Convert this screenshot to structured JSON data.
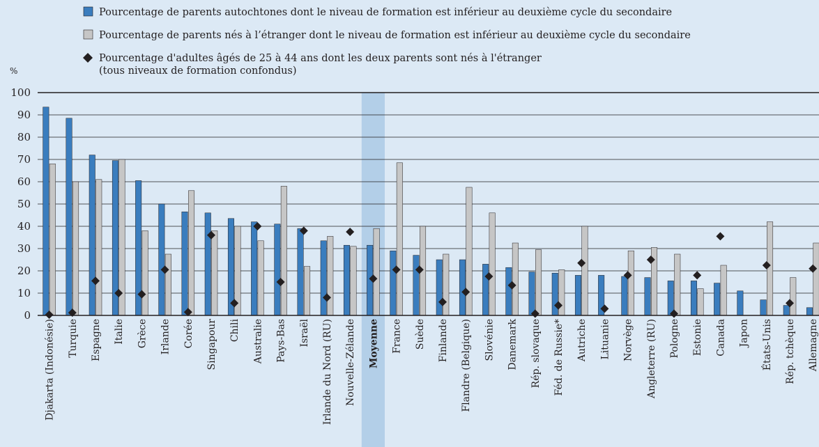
{
  "chart_data": {
    "type": "bar",
    "y_unit_label": "%",
    "ylim": [
      0,
      100
    ],
    "yticks": [
      0,
      10,
      20,
      30,
      40,
      50,
      60,
      70,
      80,
      90,
      100
    ],
    "grid": true,
    "legend_position": "top",
    "highlight_category": "Moyenne",
    "colors": {
      "native": "#3a7dbe",
      "foreign": "#c6c6c6",
      "marker": "#231f20",
      "highlight": "#b3cfe8",
      "background": "#dce9f5"
    },
    "categories": [
      "Djakarta (Indonésie)",
      "Turquie",
      "Espagne",
      "Italie",
      "Grèce",
      "Irlande",
      "Corée",
      "Singapour",
      "Chili",
      "Australie",
      "Pays-Bas",
      "Israël",
      "Irlande du Nord (RU)",
      "Nouvelle-Zélande",
      "Moyenne",
      "France",
      "Suède",
      "Finlande",
      "Flandre (Belgique)",
      "Slovénie",
      "Danemark",
      "Rép. slovaque",
      "Féd. de Russie*",
      "Autriche",
      "Lituanie",
      "Norvège",
      "Angleterre (RU)",
      "Pologne",
      "Estonie",
      "Canada",
      "Japon",
      "États-Unis",
      "Rép. tchèque",
      "Allemagne"
    ],
    "series": [
      {
        "name": "Pourcentage de parents autochtones dont le niveau de formation est inférieur au deuxième cycle du secondaire",
        "kind": "bar",
        "values": [
          93.5,
          88.5,
          72,
          69.5,
          60.5,
          50,
          46.5,
          46,
          43.5,
          42,
          41,
          39,
          33.5,
          31.5,
          31.5,
          29,
          27,
          25,
          25,
          23,
          21.5,
          19.5,
          19,
          18,
          18,
          17.5,
          17,
          15.5,
          15.5,
          14.5,
          11,
          7,
          4.5,
          3.5
        ]
      },
      {
        "name": "Pourcentage de parents nés à l’étranger dont le niveau de formation est inférieur au deuxième cycle du secondaire",
        "kind": "bar",
        "values": [
          68,
          60,
          61,
          70,
          38,
          27.5,
          56,
          38,
          40,
          33.5,
          58,
          22,
          35.5,
          31,
          39,
          68.5,
          40,
          27.5,
          57.5,
          46,
          32.5,
          29.5,
          20.5,
          40,
          null,
          29,
          30.5,
          27.5,
          12,
          22.5,
          null,
          42,
          17,
          32.5
        ]
      },
      {
        "name": "Pourcentage d'adultes âgés de 25 à 44 ans dont les deux parents sont nés à l'étranger",
        "name_line2": "(tous niveaux de formation confondus)",
        "kind": "marker",
        "values": [
          0.3,
          1.2,
          15.5,
          10,
          9.5,
          20.5,
          1.5,
          36,
          5.5,
          40,
          15,
          38,
          8,
          37.5,
          16.5,
          20.5,
          20.5,
          6,
          10.5,
          17.5,
          13.5,
          0.8,
          4.5,
          23.5,
          3,
          18,
          25,
          0.8,
          18,
          35.5,
          null,
          22.5,
          5.5,
          21
        ]
      }
    ]
  }
}
